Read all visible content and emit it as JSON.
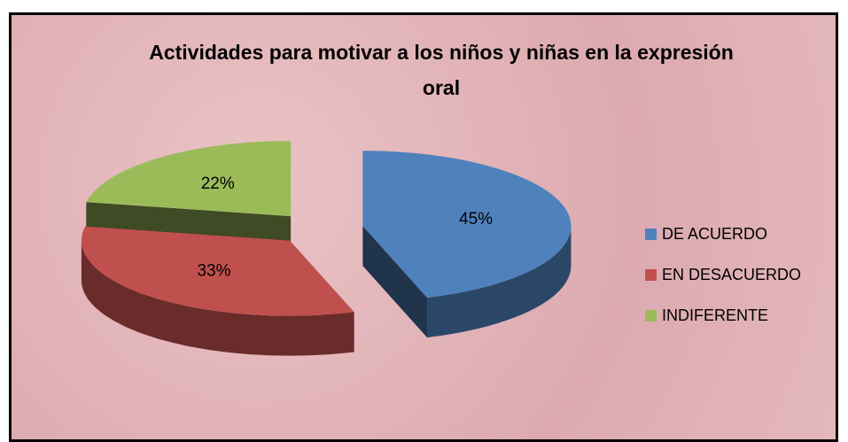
{
  "chart_data": {
    "type": "pie",
    "title": "Actividades para motivar a los niños y niñas en la expresión oral",
    "categories": [
      "DE ACUERDO",
      "EN DESACUERDO",
      "INDIFERENTE"
    ],
    "values": [
      45,
      33,
      22
    ],
    "value_labels": [
      "45%",
      "33%",
      "22%"
    ],
    "colors": [
      "#4f81bd",
      "#c0504d",
      "#9bbb59"
    ],
    "legend": "right"
  }
}
